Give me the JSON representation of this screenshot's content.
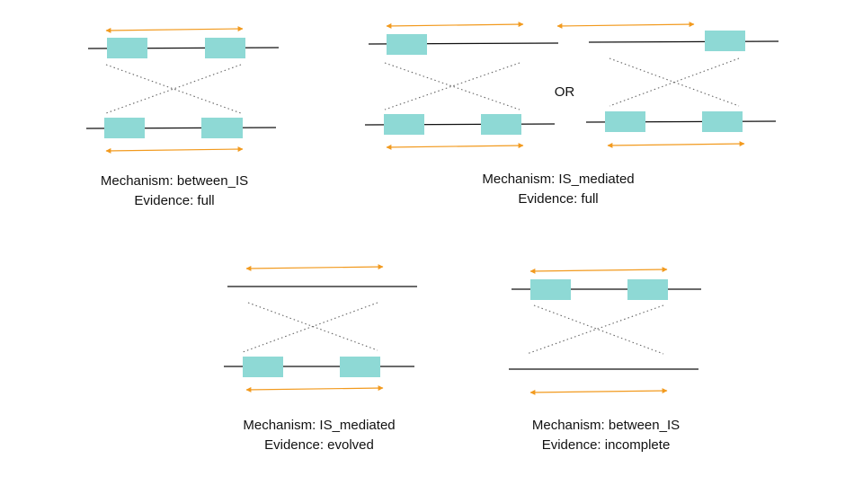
{
  "colors": {
    "is_element": "#8ed9d5",
    "arrow": "#f29a1e",
    "line": "#111111",
    "cross": "#666666"
  },
  "panels": [
    {
      "mechanism": "Mechanism: between_IS",
      "evidence": "Evidence: full"
    },
    {
      "mechanism": "Mechanism: IS_mediated",
      "evidence": "Evidence: full",
      "or_label": "OR"
    },
    {
      "mechanism": "Mechanism: IS_mediated",
      "evidence": "Evidence: evolved"
    },
    {
      "mechanism": "Mechanism: between_IS",
      "evidence": "Evidence: incomplete"
    }
  ]
}
